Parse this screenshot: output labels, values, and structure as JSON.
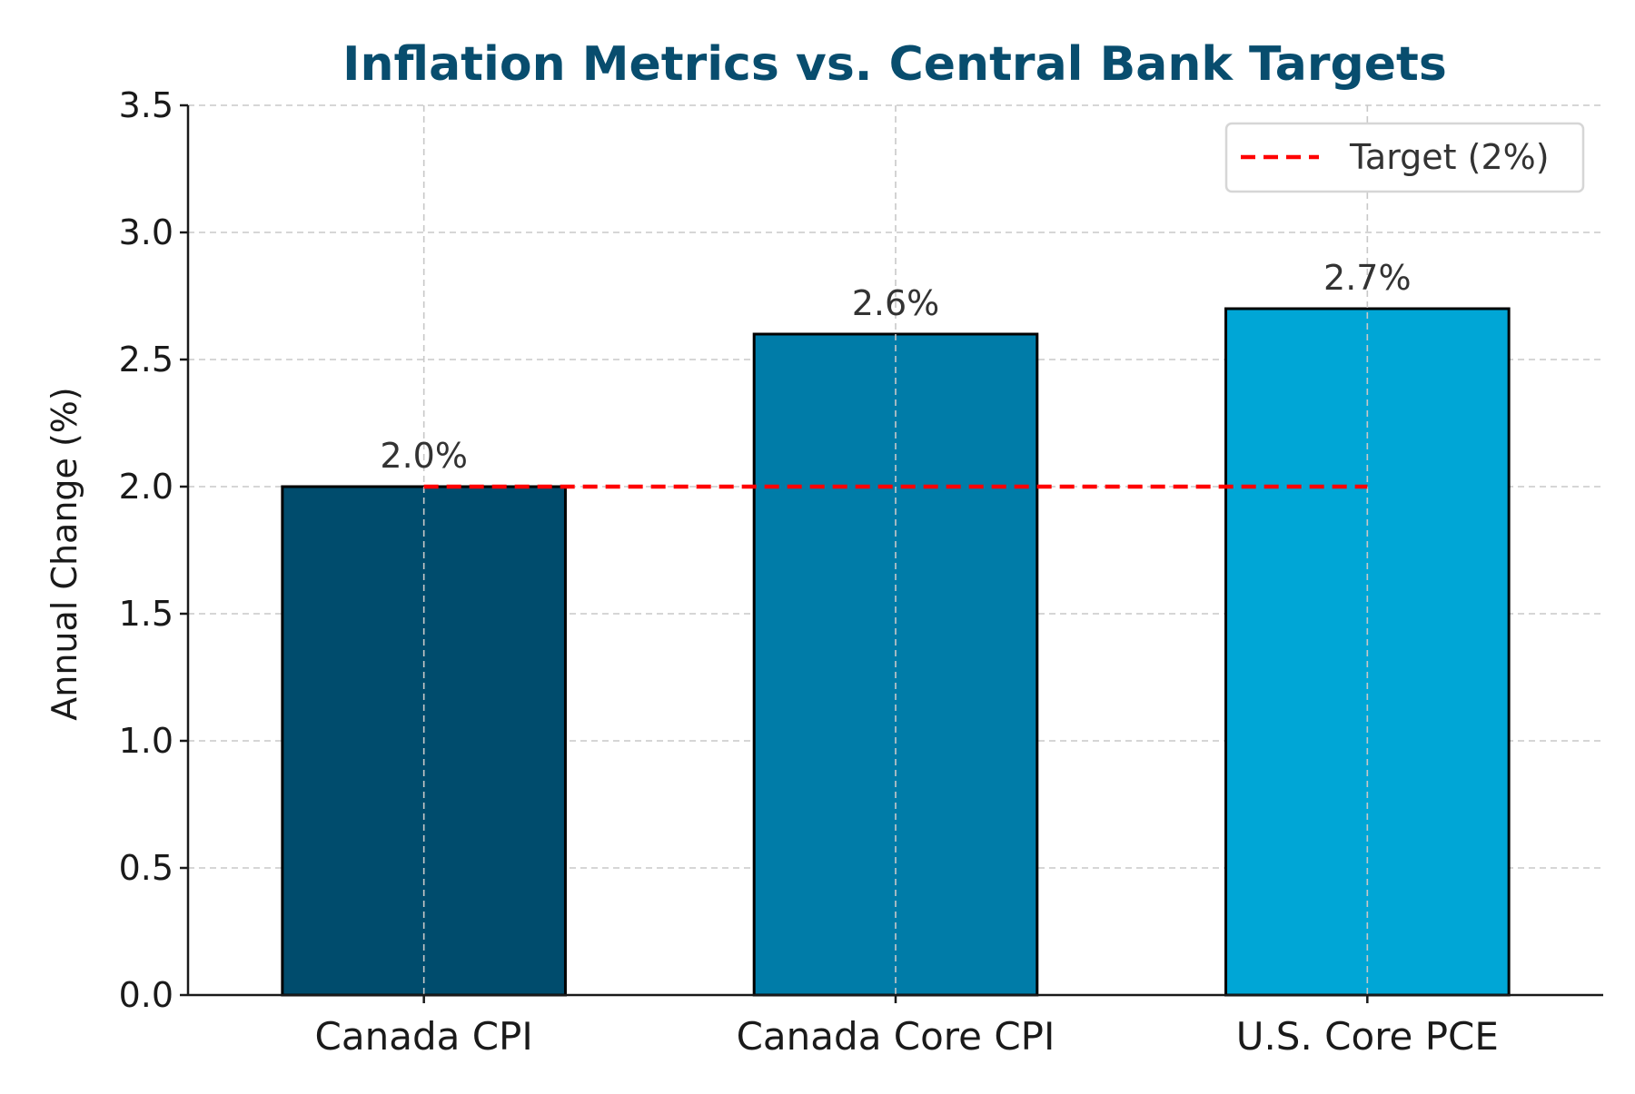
{
  "chart_data": {
    "type": "bar",
    "title": "Inflation Metrics vs. Central Bank Targets",
    "xlabel": "",
    "ylabel": "Annual Change (%)",
    "ylim": [
      0,
      3.5
    ],
    "yticks": [
      0.0,
      0.5,
      1.0,
      1.5,
      2.0,
      2.5,
      3.0,
      3.5
    ],
    "ytick_labels": [
      "0.0",
      "0.5",
      "1.0",
      "1.5",
      "2.0",
      "2.5",
      "3.0",
      "3.5"
    ],
    "categories": [
      "Canada CPI",
      "Canada Core CPI",
      "U.S. Core PCE"
    ],
    "values": [
      2.0,
      2.6,
      2.7
    ],
    "data_labels": [
      "2.0%",
      "2.6%",
      "2.7%"
    ],
    "bar_colors": [
      "#004c6d",
      "#007ca8",
      "#00a6d6"
    ],
    "grid": true,
    "reference_line": {
      "value": 2.0,
      "label": "Target (2%)",
      "color": "#ff0000",
      "style": "dashed",
      "from_category": 0,
      "to_category": 2
    },
    "legend": {
      "position": "top-right",
      "entries": [
        "Target (2%)"
      ]
    },
    "colors": {
      "title": "#084d6e",
      "axis": "#1a1a1a",
      "bar_edge": "#000000"
    }
  }
}
